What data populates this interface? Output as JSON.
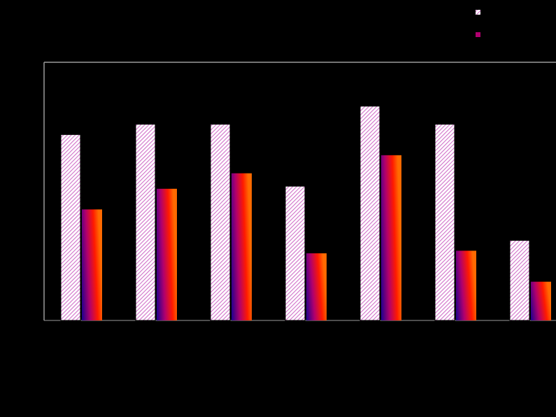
{
  "chart_data": {
    "type": "bar",
    "categories": [
      null,
      null,
      null,
      null,
      null,
      null,
      null
    ],
    "series": [
      {
        "color": "#d070c8",
        "values": [
          72,
          76,
          76,
          52,
          83,
          76,
          31
        ]
      },
      {
        "color": "#ff1a00",
        "values": [
          43,
          51,
          57,
          26,
          64,
          27,
          15
        ]
      }
    ],
    "ylim": [
      0,
      100
    ],
    "legend": "upper right"
  }
}
